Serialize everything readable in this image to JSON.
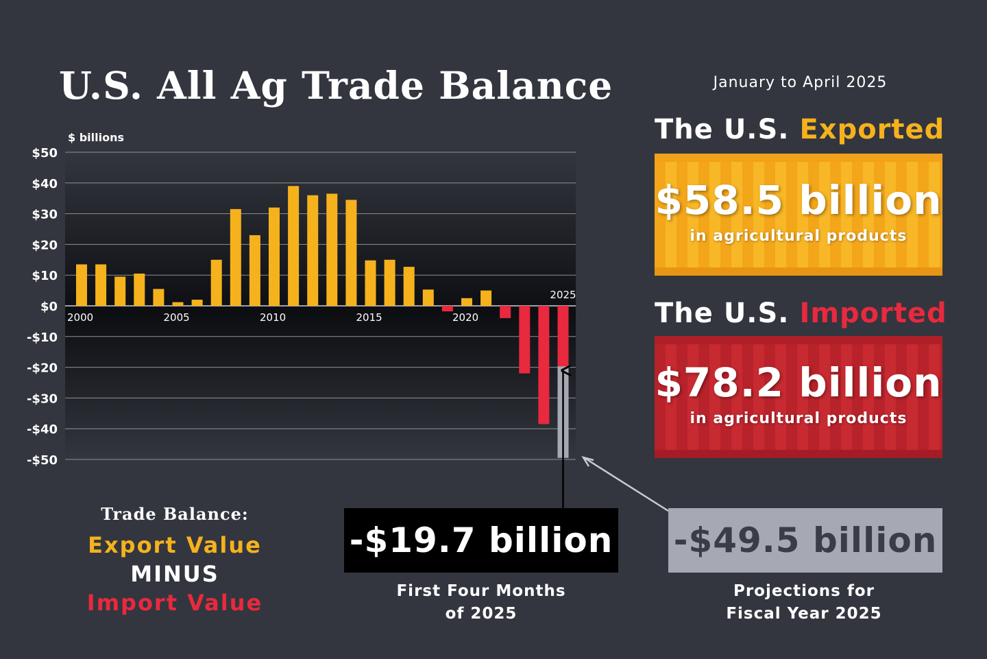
{
  "title": "U.S. All Ag Trade Balance",
  "period": "January to April 2025",
  "colors": {
    "background": "#33363e",
    "positive_bar": "#f5b21d",
    "negative_bar": "#e8293e",
    "projection_bar": "#a6a9b3"
  },
  "chart_data": {
    "type": "bar",
    "ylabel": "$ billions",
    "ylim": [
      -50,
      50
    ],
    "yticks": [
      50,
      40,
      30,
      20,
      10,
      0,
      -10,
      -20,
      -30,
      -40,
      -50
    ],
    "ytick_labels": [
      "$50",
      "$40",
      "$30",
      "$20",
      "$10",
      "$0",
      "-$10",
      "-$20",
      "-$30",
      "-$40",
      "-$50"
    ],
    "xtick_labels": [
      "2000",
      "2005",
      "2010",
      "2015",
      "2020",
      "2025"
    ],
    "categories": [
      "2000",
      "2001",
      "2002",
      "2003",
      "2004",
      "2005",
      "2006",
      "2007",
      "2008",
      "2009",
      "2010",
      "2011",
      "2012",
      "2013",
      "2014",
      "2015",
      "2016",
      "2017",
      "2018",
      "2019",
      "2020",
      "2021",
      "2022",
      "2023",
      "2024",
      "2025"
    ],
    "values": [
      13.5,
      13.5,
      9.5,
      10.5,
      5.5,
      1.2,
      2.0,
      15.0,
      31.5,
      23.0,
      32.0,
      39.0,
      36.0,
      36.5,
      34.5,
      14.8,
      15.0,
      12.7,
      5.3,
      -1.8,
      2.5,
      5.0,
      -4.0,
      -22.0,
      -38.5,
      -19.7
    ],
    "projection": {
      "category": "2025",
      "value": -49.5
    },
    "grid": true
  },
  "export_heading": {
    "prefix": "The U.S.",
    "highlight": "Exported"
  },
  "export_box": {
    "value": "$58.5 billion",
    "subtitle": "in agricultural products"
  },
  "import_heading": {
    "prefix": "The U.S.",
    "highlight": "Imported"
  },
  "import_box": {
    "value": "$78.2 billion",
    "subtitle": "in agricultural products"
  },
  "legend": {
    "title": "Trade Balance:",
    "line1": "Export Value",
    "line2": "MINUS",
    "line3": "Import Value"
  },
  "ytd": {
    "value": "-$19.7 billion",
    "caption_line1": "First Four Months",
    "caption_line2": "of 2025"
  },
  "projection": {
    "value": "-$49.5 billion",
    "caption_line1": "Projections for",
    "caption_line2": "Fiscal Year 2025"
  }
}
